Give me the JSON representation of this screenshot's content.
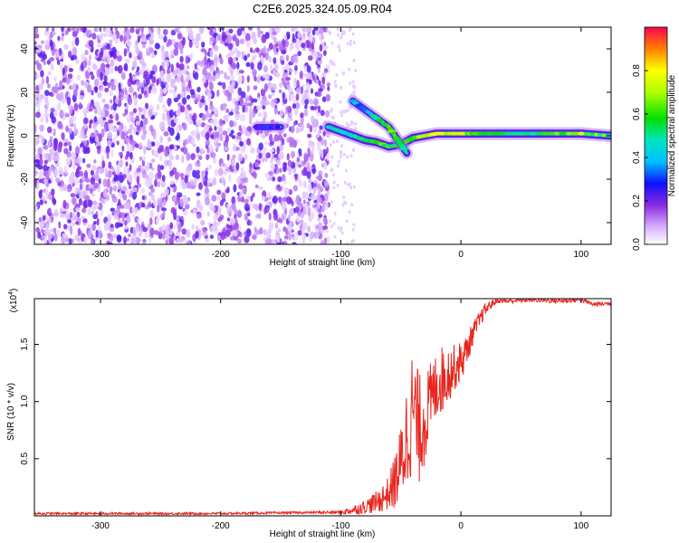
{
  "figure_title": "C2E6.2025.324.05.09.R04",
  "chart_data": [
    {
      "type": "heatmap",
      "title": "C2E6.2025.324.05.09.R04",
      "xlabel": "Height of straight line (km)",
      "ylabel": "Frequency (Hz)",
      "xlim": [
        -355,
        125
      ],
      "ylim": [
        -50,
        50
      ],
      "xticks": [
        -300,
        -200,
        -100,
        0,
        100
      ],
      "yticks": [
        -40,
        -20,
        0,
        20,
        40
      ],
      "colorbar": {
        "label": "Normalized spectral amplitude",
        "range": [
          0,
          1
        ],
        "ticks": [
          0.0,
          0.2,
          0.4,
          0.6,
          0.8
        ],
        "tick_labels": [
          "0.0",
          "0.2",
          "0.4",
          "0.6",
          "0.8"
        ]
      },
      "noise_region": {
        "x_range": [
          -355,
          -110
        ],
        "y_range": [
          -50,
          50
        ],
        "level": "low"
      },
      "signal_main": {
        "description": "main carrier trace",
        "x": [
          -110,
          -100,
          -90,
          -80,
          -70,
          -60,
          -50,
          -40,
          -30,
          -20,
          -10,
          0,
          10,
          20,
          40,
          60,
          80,
          100,
          125
        ],
        "y": [
          4,
          2,
          0,
          -2,
          -3,
          -5,
          -4,
          -1,
          0,
          1,
          1,
          1,
          1,
          1,
          1,
          1,
          1,
          1,
          0
        ],
        "amplitude": [
          0.45,
          0.5,
          0.5,
          0.55,
          0.6,
          0.6,
          0.55,
          0.65,
          0.7,
          0.75,
          0.75,
          0.75,
          0.6,
          0.55,
          0.5,
          0.55,
          0.6,
          0.75,
          0.55
        ]
      },
      "signal_branch": {
        "description": "secondary trace",
        "x": [
          -90,
          -80,
          -70,
          -60,
          -55,
          -50,
          -45
        ],
        "y": [
          16,
          12,
          8,
          4,
          0,
          -4,
          -8
        ],
        "amplitude": [
          0.35,
          0.4,
          0.5,
          0.6,
          0.6,
          0.5,
          0.45
        ]
      },
      "signal_early": {
        "description": "weak trace",
        "x": [
          -170,
          -160,
          -150
        ],
        "y": [
          4,
          4,
          4
        ],
        "amplitude": [
          0.3,
          0.25,
          0.3
        ]
      }
    },
    {
      "type": "line",
      "xlabel": "Height of straight line (km)",
      "ylabel": "SNR (10 * v/v)",
      "yscale_label": "(x10",
      "yscale_exponent": "4",
      "xlim": [
        -355,
        125
      ],
      "ylim": [
        0,
        1.9
      ],
      "xticks": [
        -300,
        -200,
        -100,
        0,
        100
      ],
      "yticks": [
        0.5,
        1.0,
        1.5
      ],
      "ytick_labels": [
        "0.5",
        "1.0",
        "1.5"
      ],
      "color": "#e8251e",
      "series": [
        {
          "name": "SNR",
          "x": [
            -355,
            -300,
            -200,
            -120,
            -100,
            -90,
            -80,
            -70,
            -60,
            -55,
            -50,
            -45,
            -40,
            -35,
            -30,
            -25,
            -20,
            -15,
            -10,
            -5,
            0,
            5,
            10,
            15,
            20,
            25,
            30,
            40,
            60,
            80,
            100,
            110,
            125
          ],
          "y": [
            0.02,
            0.02,
            0.02,
            0.03,
            0.03,
            0.05,
            0.08,
            0.12,
            0.2,
            0.3,
            0.45,
            0.7,
            0.95,
            0.75,
            0.85,
            1.0,
            1.15,
            1.2,
            1.25,
            1.3,
            1.35,
            1.45,
            1.6,
            1.7,
            1.8,
            1.85,
            1.88,
            1.88,
            1.89,
            1.88,
            1.89,
            1.85,
            1.86
          ],
          "noise": [
            0.01,
            0.01,
            0.01,
            0.01,
            0.02,
            0.04,
            0.06,
            0.1,
            0.15,
            0.25,
            0.35,
            0.5,
            0.55,
            0.5,
            0.4,
            0.35,
            0.3,
            0.3,
            0.25,
            0.2,
            0.18,
            0.14,
            0.1,
            0.08,
            0.06,
            0.04,
            0.02,
            0.02,
            0.02,
            0.02,
            0.02,
            0.02,
            0.02
          ]
        }
      ]
    }
  ]
}
